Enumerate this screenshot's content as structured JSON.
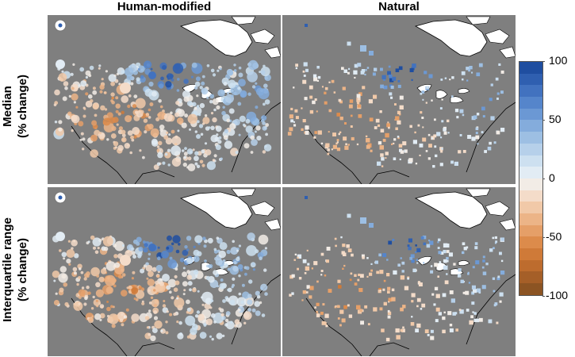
{
  "columns": [
    "Human-modified",
    "Natural"
  ],
  "rows": [
    {
      "line1": "Median",
      "line2": "(% change)"
    },
    {
      "line1": "Interquartile range",
      "line2": "(% change)"
    }
  ],
  "colorbar": {
    "min": -100,
    "max": 100,
    "ticks": [
      "100",
      "50",
      "0",
      "-50",
      "-100"
    ],
    "tick_values": [
      100,
      50,
      0,
      -50,
      -100
    ],
    "colors": [
      "#1f4ea0",
      "#2f5fb0",
      "#4272bf",
      "#5585cb",
      "#6b98d4",
      "#84acdc",
      "#9dbfe3",
      "#b6d0ea",
      "#cde0f0",
      "#e2ecf4",
      "#f2ece6",
      "#f4dcc9",
      "#f1c9a8",
      "#ecb487",
      "#e59f68",
      "#dc8b4b",
      "#cf7a38",
      "#bd6c2e",
      "#a55f28",
      "#8c5423"
    ]
  },
  "colors": {
    "land": "#7f7f7f",
    "water": "#ffffff",
    "background": "#ffffff"
  },
  "marker_shapes": {
    "Human-modified": "circle",
    "Natural": "square"
  }
}
